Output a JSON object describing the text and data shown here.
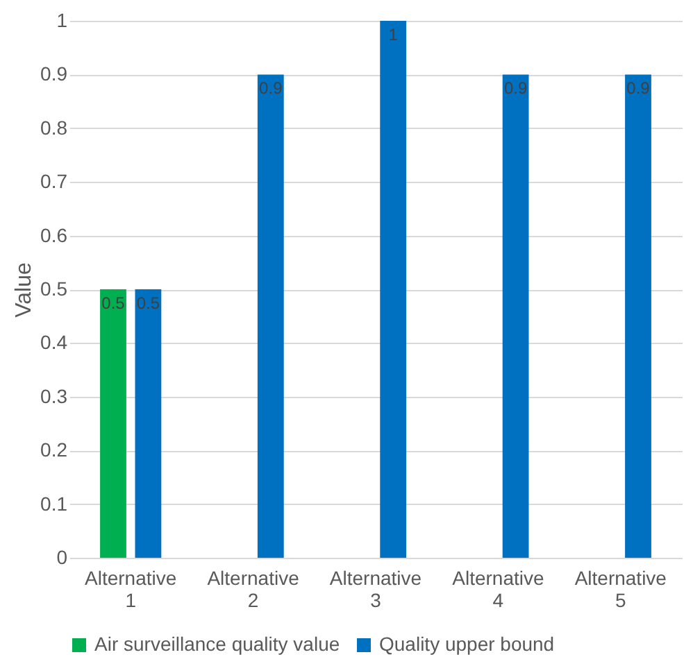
{
  "chart_data": {
    "type": "bar",
    "ylabel": "Value",
    "categories": [
      "Alternative 1",
      "Alternative 2",
      "Alternative 3",
      "Alternative 4",
      "Alternative 5"
    ],
    "series": [
      {
        "name": "Air surveillance quality value",
        "color": "#00b050",
        "values": [
          0.5,
          null,
          null,
          null,
          null
        ]
      },
      {
        "name": "Quality upper bound",
        "color": "#0070c0",
        "values": [
          0.5,
          0.9,
          1,
          0.9,
          0.9
        ]
      }
    ],
    "ylim": [
      0,
      1
    ],
    "yticks": [
      0,
      0.1,
      0.2,
      0.3,
      0.4,
      0.5,
      0.6,
      0.7,
      0.8,
      0.9,
      1
    ],
    "grid": "y",
    "legend": "bottom",
    "data_labels": true
  }
}
